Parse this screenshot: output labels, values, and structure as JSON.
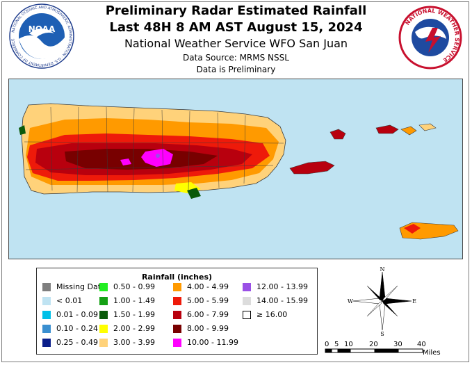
{
  "header": {
    "title_line1": "Preliminary Radar Estimated Rainfall",
    "title_line2": "Last 48H 8 AM AST August 15, 2024",
    "office": "National Weather Service WFO San Juan",
    "data_source": "Data Source: MRMS NSSL",
    "preliminary_note": "Data is Preliminary"
  },
  "logos": {
    "noaa_text": "NOAA",
    "noaa_ring_text": "NATIONAL OCEANIC AND ATMOSPHERIC ADMINISTRATION · U.S. DEPARTMENT OF COMMERCE",
    "nws_ring_text": "NATIONAL WEATHER SERVICE"
  },
  "legend": {
    "title": "Rainfall (inches)",
    "items": [
      {
        "label": "Missing Data",
        "color": "#7f7f7f"
      },
      {
        "label": "< 0.01",
        "color": "#bfe3f2"
      },
      {
        "label": "0.01 - 0.09",
        "color": "#00c0e8"
      },
      {
        "label": "0.10 - 0.24",
        "color": "#3a8fd0"
      },
      {
        "label": "0.25 - 0.49",
        "color": "#0a1e8a"
      },
      {
        "label": "0.50 - 0.99",
        "color": "#22ee22"
      },
      {
        "label": "1.00 - 1.49",
        "color": "#14a014"
      },
      {
        "label": "1.50 - 1.99",
        "color": "#0a5a0a"
      },
      {
        "label": "2.00 - 2.99",
        "color": "#ffff00"
      },
      {
        "label": "3.00 - 3.99",
        "color": "#ffd27a"
      },
      {
        "label": "4.00 - 4.99",
        "color": "#ff9a00"
      },
      {
        "label": "5.00 - 5.99",
        "color": "#ee1a0a"
      },
      {
        "label": "6.00 - 7.99",
        "color": "#b8000e"
      },
      {
        "label": "8.00 - 9.99",
        "color": "#780000"
      },
      {
        "label": "10.00 - 11.99",
        "color": "#ff00ff"
      },
      {
        "label": "12.00 - 13.99",
        "color": "#9a50e6"
      },
      {
        "label": "14.00 - 15.99",
        "color": "#dcdcdc"
      },
      {
        "label": "≥ 16.00",
        "color": "#ffffff"
      }
    ]
  },
  "compass": {
    "n": "N",
    "s": "S",
    "e": "E",
    "w": "W"
  },
  "scale": {
    "ticks": [
      "0",
      "5",
      "10",
      "20",
      "30",
      "40"
    ],
    "unit": "Miles"
  },
  "colors": {
    "ocean": "#bfe3f2",
    "land_base": "#ffd27a",
    "heavy": "#b8000e",
    "extreme": "#780000"
  }
}
